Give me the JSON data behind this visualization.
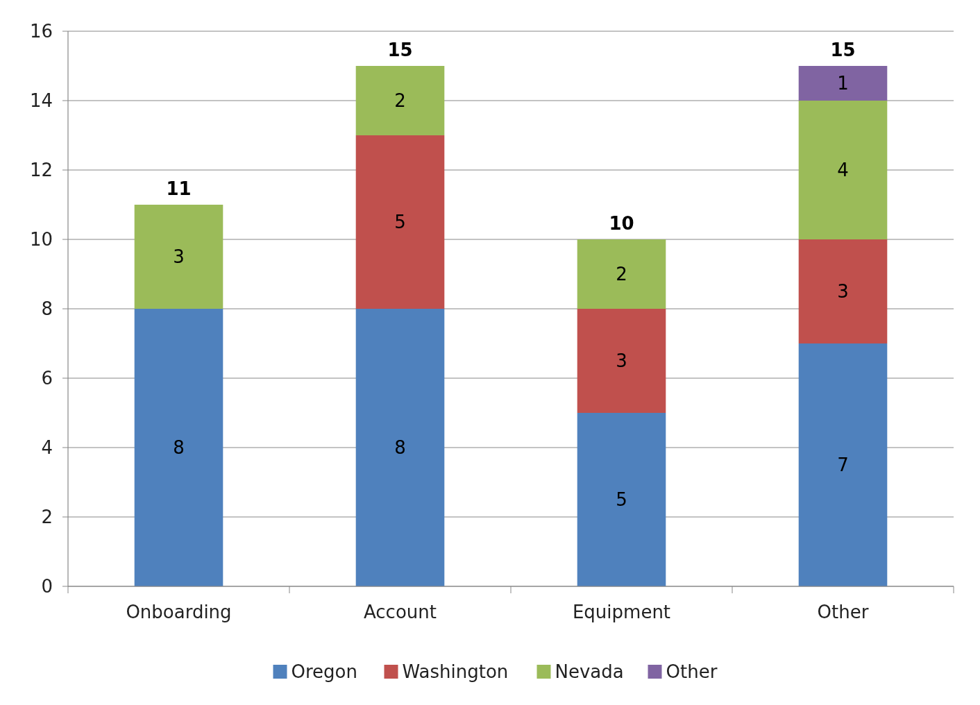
{
  "chart_data": {
    "type": "bar",
    "stacked": true,
    "categories": [
      "Onboarding",
      "Account",
      "Equipment",
      "Other"
    ],
    "series": [
      {
        "name": "Oregon",
        "color": "#4f81bd",
        "values": [
          8,
          8,
          5,
          7
        ]
      },
      {
        "name": "Washington",
        "color": "#c0504d",
        "values": [
          null,
          5,
          3,
          3
        ]
      },
      {
        "name": "Nevada",
        "color": "#9bbb59",
        "values": [
          3,
          2,
          2,
          4
        ]
      },
      {
        "name": "Other",
        "color": "#8064a2",
        "values": [
          null,
          null,
          null,
          1
        ]
      }
    ],
    "ylim": [
      0,
      16
    ],
    "yticks": [
      0,
      2,
      4,
      6,
      8,
      10,
      12,
      14,
      16
    ],
    "grid": "y",
    "legend": "bottom",
    "data_labels": true,
    "totals": [
      "11",
      "15",
      "10",
      "15"
    ]
  }
}
